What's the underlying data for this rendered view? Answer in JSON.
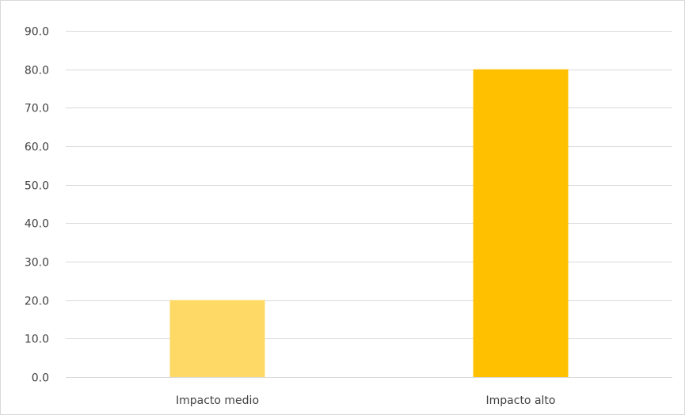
{
  "chart_data": {
    "type": "bar",
    "categories": [
      "Impacto medio",
      "Impacto alto"
    ],
    "values": [
      20.0,
      80.0
    ],
    "colors": [
      "#FFD966",
      "#FFC000"
    ],
    "ylim": [
      0,
      90
    ],
    "yticks": [
      0,
      10,
      20,
      30,
      40,
      50,
      60,
      70,
      80,
      90
    ],
    "ytick_labels": [
      "0.0",
      "10.0",
      "20.0",
      "30.0",
      "40.0",
      "50.0",
      "60.0",
      "70.0",
      "80.0",
      "90.0"
    ],
    "title": "",
    "xlabel": "",
    "ylabel": "",
    "grid": true,
    "legend": "none",
    "gridline_color": "#D9D9D9",
    "text_color": "#404040"
  }
}
